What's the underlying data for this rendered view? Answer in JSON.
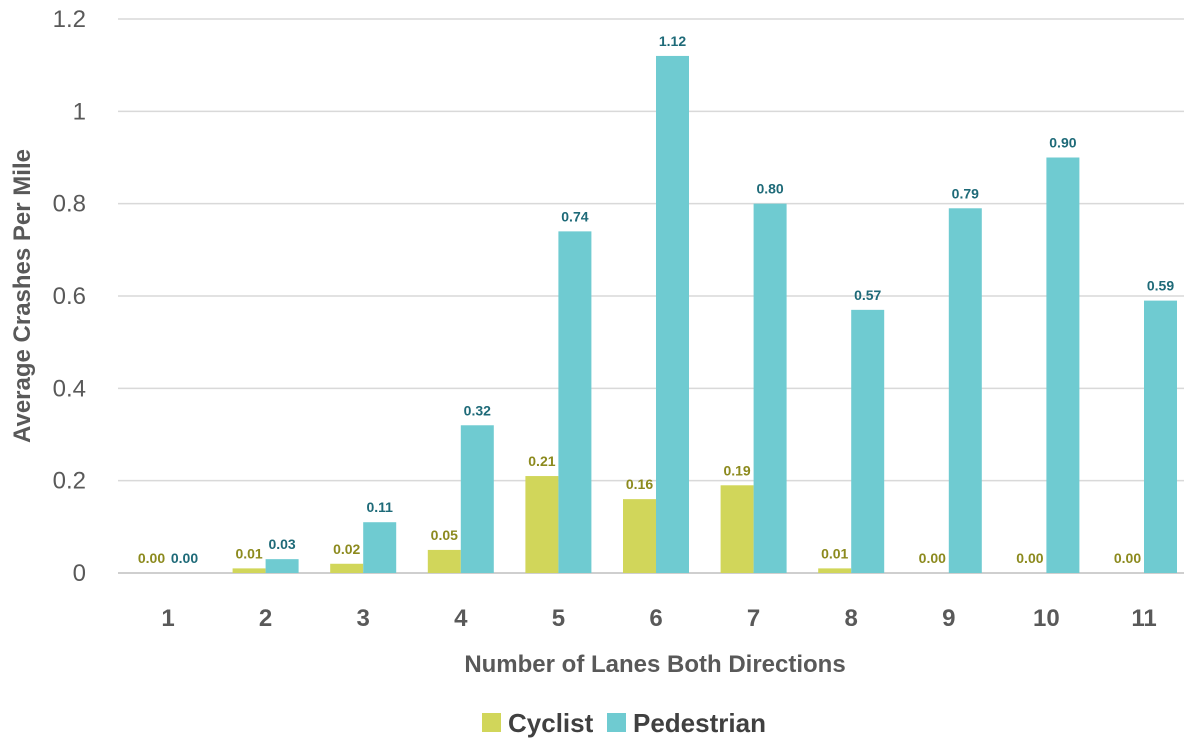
{
  "chart_data": {
    "type": "bar",
    "title": "",
    "xlabel": "Number of Lanes Both Directions",
    "ylabel": "Average Crashes Per Mile",
    "ylim": [
      0,
      1.2
    ],
    "yticks": [
      "0",
      "0.2",
      "0.4",
      "0.6",
      "0.8",
      "1",
      "1.2"
    ],
    "ytick_values": [
      0,
      0.2,
      0.4,
      0.6,
      0.8,
      1.0,
      1.2
    ],
    "grid": true,
    "legend_position": "bottom",
    "categories": [
      "1",
      "2",
      "3",
      "4",
      "5",
      "6",
      "7",
      "8",
      "9",
      "10",
      "11"
    ],
    "series": [
      {
        "name": "Cyclist",
        "color": "#d1d65a",
        "label_color": "#8c8a1e",
        "values": [
          0.0,
          0.01,
          0.02,
          0.05,
          0.21,
          0.16,
          0.19,
          0.01,
          0.0,
          0.0,
          0.0
        ],
        "labels": [
          "0.00",
          "0.01",
          "0.02",
          "0.05",
          "0.21",
          "0.16",
          "0.19",
          "0.01",
          "0.00",
          "0.00",
          "0.00"
        ]
      },
      {
        "name": "Pedestrian",
        "color": "#6fcbd1",
        "label_color": "#1e6a78",
        "values": [
          0.0,
          0.03,
          0.11,
          0.32,
          0.74,
          1.12,
          0.8,
          0.57,
          0.79,
          0.9,
          0.59
        ],
        "labels": [
          "0.00",
          "0.03",
          "0.11",
          "0.32",
          "0.74",
          "1.12",
          "0.80",
          "0.57",
          "0.79",
          "0.90",
          "0.59"
        ]
      }
    ]
  }
}
